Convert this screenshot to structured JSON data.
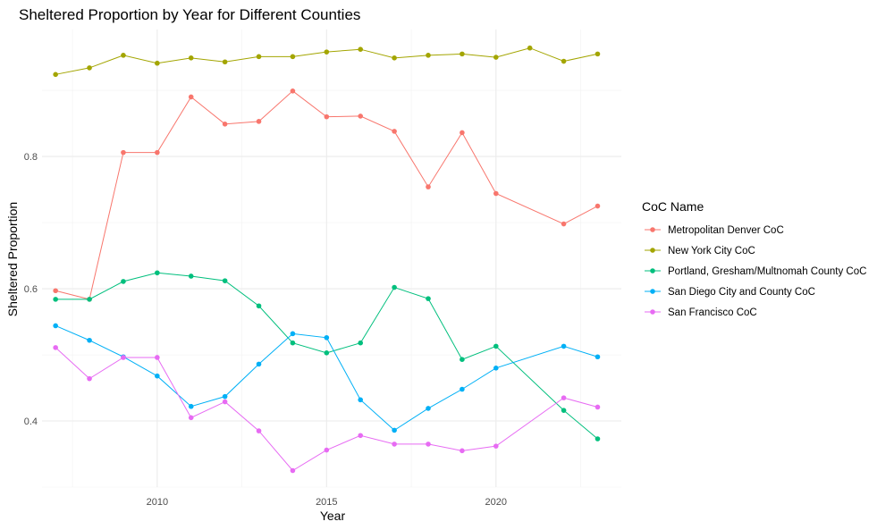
{
  "chart_data": {
    "type": "line",
    "title": "Sheltered Proportion by Year for Different Counties",
    "xlabel": "Year",
    "ylabel": "Sheltered Proportion",
    "xlim": [
      2006.6,
      2023.7
    ],
    "ylim": [
      0.3,
      0.992
    ],
    "x_ticks": [
      2010,
      2015,
      2020
    ],
    "x_minor": [
      2007.5,
      2012.5,
      2017.5,
      2022.5
    ],
    "y_ticks": [
      0.4,
      0.6,
      0.8
    ],
    "y_minor": [
      0.3,
      0.5,
      0.7,
      0.9
    ],
    "grid": true,
    "legend": {
      "title": "CoC Name",
      "placement": "right"
    },
    "series": [
      {
        "name": "Metropolitan Denver CoC",
        "color": "#F8766D",
        "points": [
          [
            2007,
            0.597
          ],
          [
            2008,
            0.584
          ],
          [
            2009,
            0.806
          ],
          [
            2010,
            0.806
          ],
          [
            2011,
            0.89
          ],
          [
            2012,
            0.849
          ],
          [
            2013,
            0.853
          ],
          [
            2014,
            0.899
          ],
          [
            2015,
            0.86
          ],
          [
            2016,
            0.861
          ],
          [
            2017,
            0.838
          ],
          [
            2018,
            0.754
          ],
          [
            2019,
            0.836
          ],
          [
            2020,
            0.744
          ],
          [
            2022,
            0.698
          ],
          [
            2023,
            0.725
          ]
        ]
      },
      {
        "name": "New York City CoC",
        "color": "#A3A500",
        "points": [
          [
            2007,
            0.924
          ],
          [
            2008,
            0.934
          ],
          [
            2009,
            0.953
          ],
          [
            2010,
            0.941
          ],
          [
            2011,
            0.949
          ],
          [
            2012,
            0.943
          ],
          [
            2013,
            0.951
          ],
          [
            2014,
            0.951
          ],
          [
            2015,
            0.958
          ],
          [
            2016,
            0.962
          ],
          [
            2017,
            0.949
          ],
          [
            2018,
            0.953
          ],
          [
            2019,
            0.955
          ],
          [
            2020,
            0.95
          ],
          [
            2021,
            0.964
          ],
          [
            2022,
            0.944
          ],
          [
            2023,
            0.955
          ]
        ]
      },
      {
        "name": "Portland, Gresham/Multnomah County CoC",
        "color": "#00BF7D",
        "points": [
          [
            2007,
            0.584
          ],
          [
            2008,
            0.584
          ],
          [
            2009,
            0.611
          ],
          [
            2010,
            0.624
          ],
          [
            2011,
            0.619
          ],
          [
            2012,
            0.612
          ],
          [
            2013,
            0.574
          ],
          [
            2014,
            0.518
          ],
          [
            2015,
            0.503
          ],
          [
            2016,
            0.518
          ],
          [
            2017,
            0.602
          ],
          [
            2018,
            0.585
          ],
          [
            2019,
            0.493
          ],
          [
            2020,
            0.513
          ],
          [
            2022,
            0.416
          ],
          [
            2023,
            0.373
          ]
        ]
      },
      {
        "name": "San Diego City and County CoC",
        "color": "#00B0F6",
        "points": [
          [
            2007,
            0.544
          ],
          [
            2008,
            0.522
          ],
          [
            2009,
            0.497
          ],
          [
            2010,
            0.468
          ],
          [
            2011,
            0.422
          ],
          [
            2012,
            0.437
          ],
          [
            2013,
            0.486
          ],
          [
            2014,
            0.532
          ],
          [
            2015,
            0.526
          ],
          [
            2016,
            0.432
          ],
          [
            2017,
            0.386
          ],
          [
            2018,
            0.419
          ],
          [
            2019,
            0.448
          ],
          [
            2020,
            0.48
          ],
          [
            2022,
            0.513
          ],
          [
            2023,
            0.497
          ]
        ]
      },
      {
        "name": "San Francisco CoC",
        "color": "#E76BF3",
        "points": [
          [
            2007,
            0.511
          ],
          [
            2008,
            0.464
          ],
          [
            2009,
            0.496
          ],
          [
            2010,
            0.496
          ],
          [
            2011,
            0.405
          ],
          [
            2012,
            0.429
          ],
          [
            2013,
            0.385
          ],
          [
            2014,
            0.325
          ],
          [
            2015,
            0.356
          ],
          [
            2016,
            0.378
          ],
          [
            2017,
            0.365
          ],
          [
            2018,
            0.365
          ],
          [
            2019,
            0.355
          ],
          [
            2020,
            0.362
          ],
          [
            2022,
            0.435
          ],
          [
            2023,
            0.421
          ]
        ]
      }
    ]
  }
}
